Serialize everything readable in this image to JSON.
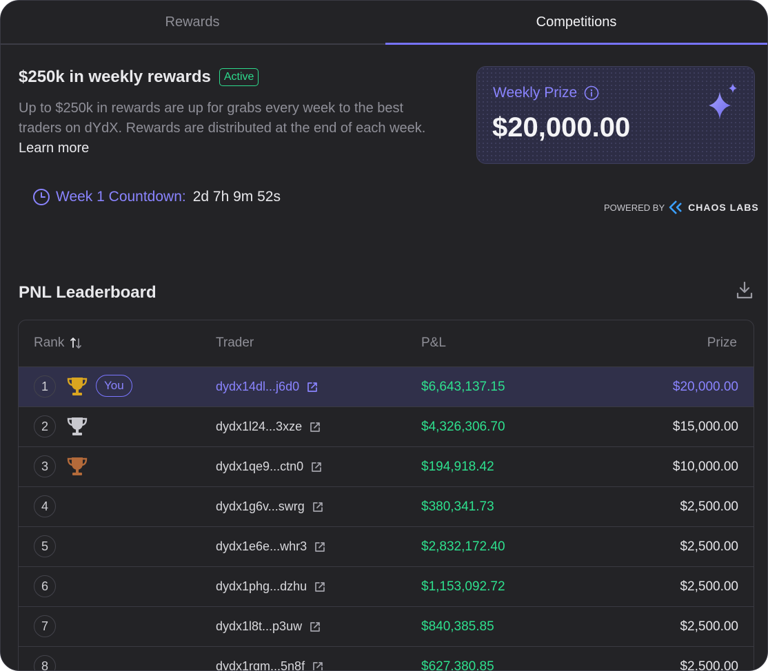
{
  "tabs": [
    {
      "label": "Rewards"
    },
    {
      "label": "Competitions"
    }
  ],
  "header": {
    "title": "$250k in weekly rewards",
    "badge": "Active",
    "description": "Up to $250k in rewards are up for grabs every week to the best traders on dYdX. Rewards are distributed at the end of each week.",
    "learn_more": "Learn more"
  },
  "countdown": {
    "label": "Week 1 Countdown:",
    "value": "2d 7h 9m 52s"
  },
  "prize_card": {
    "label": "Weekly Prize",
    "amount": "$20,000.00"
  },
  "powered_by": {
    "prefix": "POWERED BY",
    "brand": "CHAOS LABS"
  },
  "leaderboard": {
    "title": "PNL Leaderboard",
    "columns": {
      "rank": "Rank",
      "trader": "Trader",
      "pnl": "P&L",
      "prize": "Prize"
    },
    "you_label": "You",
    "rows": [
      {
        "rank": "1",
        "trader": "dydx14dl...j6d0",
        "pnl": "$6,643,137.15",
        "prize": "$20,000.00"
      },
      {
        "rank": "2",
        "trader": "dydx1l24...3xze",
        "pnl": "$4,326,306.70",
        "prize": "$15,000.00"
      },
      {
        "rank": "3",
        "trader": "dydx1qe9...ctn0",
        "pnl": "$194,918.42",
        "prize": "$10,000.00"
      },
      {
        "rank": "4",
        "trader": "dydx1g6v...swrg",
        "pnl": "$380,341.73",
        "prize": "$2,500.00"
      },
      {
        "rank": "5",
        "trader": "dydx1e6e...whr3",
        "pnl": "$2,832,172.40",
        "prize": "$2,500.00"
      },
      {
        "rank": "6",
        "trader": "dydx1phg...dzhu",
        "pnl": "$1,153,092.72",
        "prize": "$2,500.00"
      },
      {
        "rank": "7",
        "trader": "dydx1l8t...p3uw",
        "pnl": "$840,385.85",
        "prize": "$2,500.00"
      },
      {
        "rank": "8",
        "trader": "dydx1rqm...5n8f",
        "pnl": "$627,380.85",
        "prize": "$2,500.00"
      }
    ]
  },
  "colors": {
    "accent": "#7774ff",
    "positive": "#2ee08e",
    "gold": "#d9a520",
    "silver": "#c9c9cf",
    "bronze": "#b36a3a"
  }
}
